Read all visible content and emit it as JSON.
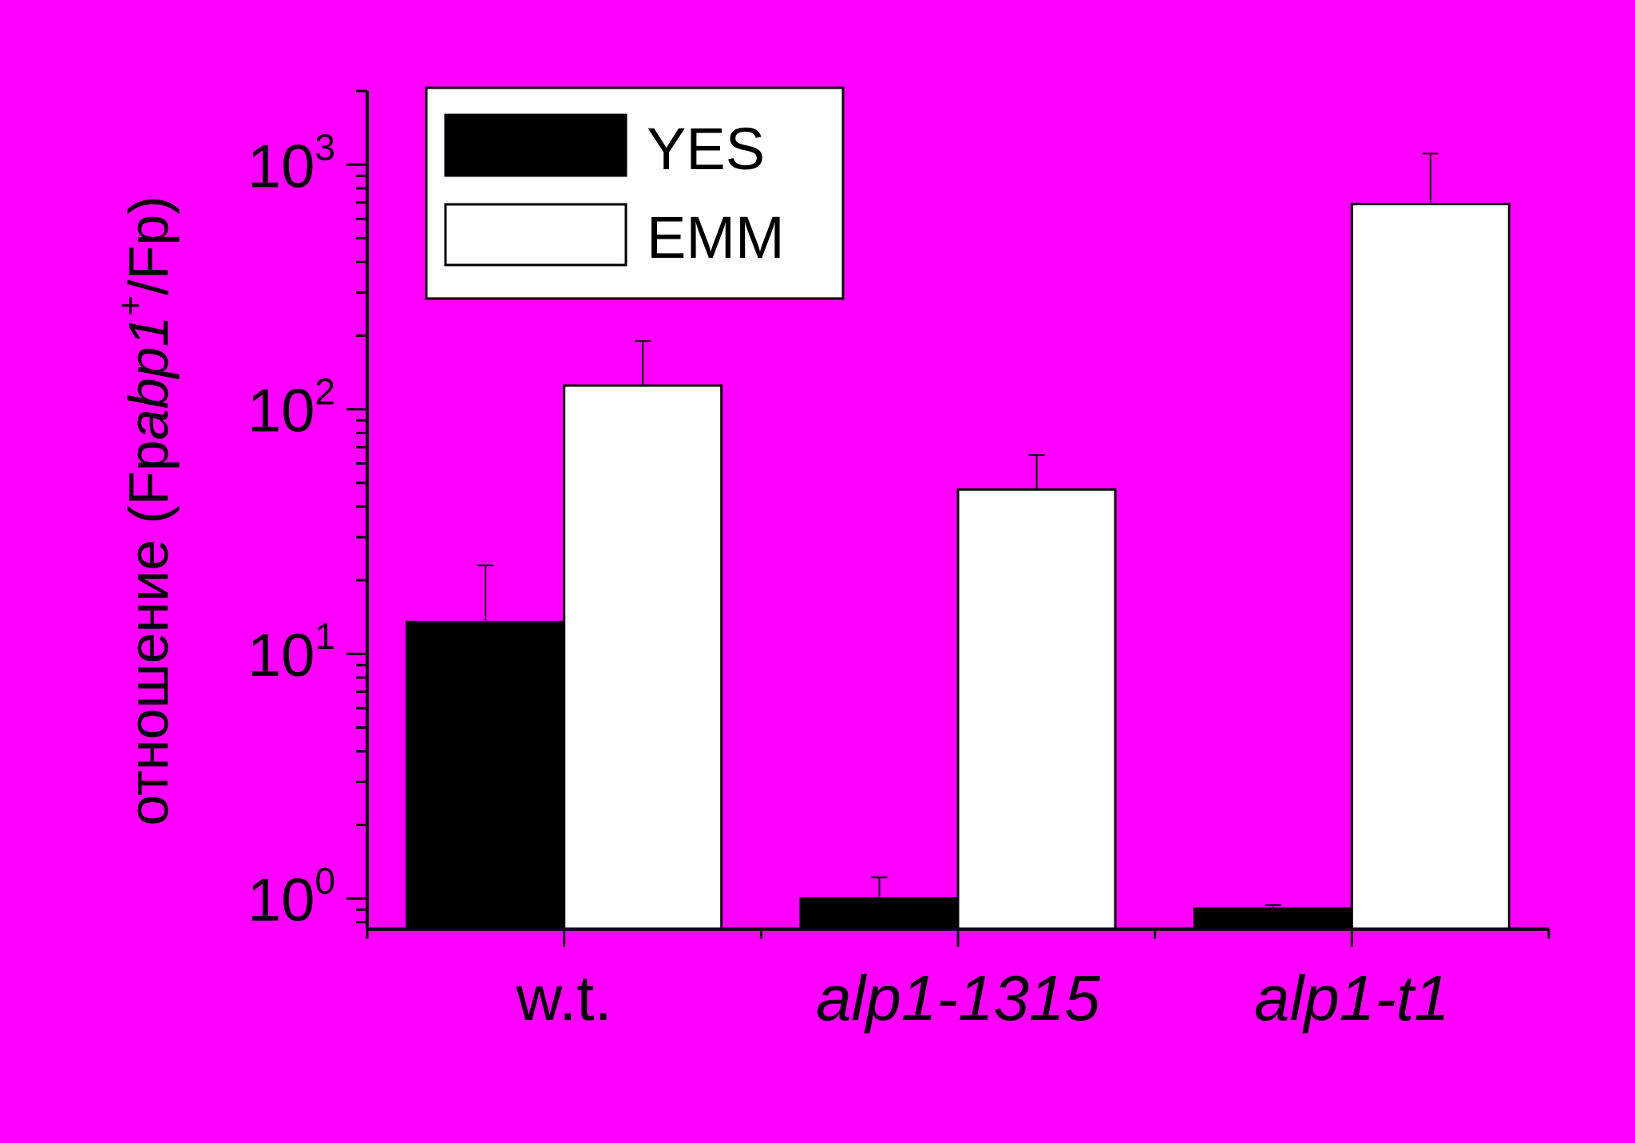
{
  "background_color": "#ff00ff",
  "chart_data": {
    "type": "bar",
    "ylabel": {
      "prefix": "отношение (Fp",
      "italic": "abp1",
      "superscript": "+",
      "suffix": "/Fp)"
    },
    "y_scale": "log",
    "ylim": [
      0.75,
      2000
    ],
    "yticks": [
      {
        "value": 1,
        "base": "10",
        "exp": "0"
      },
      {
        "value": 10,
        "base": "10",
        "exp": "1"
      },
      {
        "value": 100,
        "base": "10",
        "exp": "2"
      },
      {
        "value": 1000,
        "base": "10",
        "exp": "3"
      }
    ],
    "categories": [
      {
        "label": "w.t.",
        "italic": false
      },
      {
        "label": "alp1-1315",
        "italic": true
      },
      {
        "label": "alp1-t1",
        "italic": true
      }
    ],
    "series": [
      {
        "name": "YES",
        "color": "#000000",
        "values": [
          13.5,
          1.0,
          0.91
        ],
        "errors": [
          9.5,
          0.22,
          0.03
        ]
      },
      {
        "name": "EMM",
        "color": "#ffffff",
        "values": [
          125,
          47,
          690
        ],
        "errors": [
          65,
          18,
          420
        ]
      }
    ],
    "legend_placement": "top-left",
    "grid": false
  }
}
